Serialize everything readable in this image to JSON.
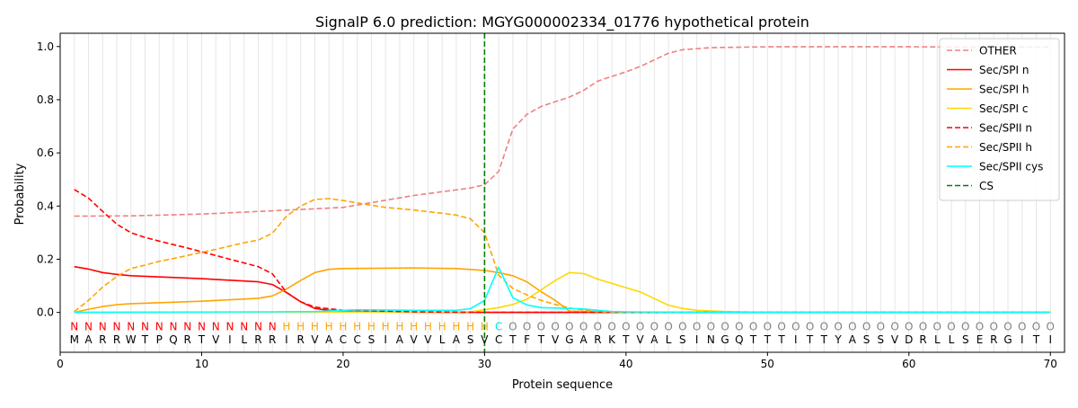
{
  "chart_data": {
    "type": "line",
    "title": "SignalP 6.0 prediction: MGYG000002334_01776 hypothetical protein",
    "xlabel": "Protein sequence",
    "ylabel": "Probability",
    "xlim": [
      0,
      71
    ],
    "ylim": [
      -0.15,
      1.05
    ],
    "x_ticks": [
      0,
      10,
      20,
      30,
      40,
      50,
      60,
      70
    ],
    "y_ticks": [
      0.0,
      0.2,
      0.4,
      0.6,
      0.8,
      1.0
    ],
    "grid": "vertical lines at each residue",
    "legend_position": "top-right",
    "cs_position": 30,
    "sequence": [
      "M",
      "A",
      "R",
      "R",
      "W",
      "T",
      "P",
      "Q",
      "R",
      "T",
      "V",
      "I",
      "L",
      "R",
      "R",
      "I",
      "R",
      "V",
      "A",
      "C",
      "C",
      "S",
      "I",
      "A",
      "V",
      "V",
      "L",
      "A",
      "S",
      "V",
      "C",
      "T",
      "F",
      "T",
      "V",
      "G",
      "A",
      "R",
      "K",
      "T",
      "V",
      "A",
      "L",
      "S",
      "I",
      "N",
      "G",
      "Q",
      "T",
      "T",
      "T",
      "I",
      "T",
      "T",
      "Y",
      "A",
      "S",
      "S",
      "V",
      "D",
      "R",
      "L",
      "L",
      "S",
      "E",
      "R",
      "G",
      "I",
      "T",
      "I"
    ],
    "region_labels": [
      "N",
      "N",
      "N",
      "N",
      "N",
      "N",
      "N",
      "N",
      "N",
      "N",
      "N",
      "N",
      "N",
      "N",
      "N",
      "H",
      "H",
      "H",
      "H",
      "H",
      "H",
      "H",
      "H",
      "H",
      "H",
      "H",
      "H",
      "H",
      "H",
      "H",
      "C",
      "O",
      "O",
      "O",
      "O",
      "O",
      "O",
      "O",
      "O",
      "O",
      "O",
      "O",
      "O",
      "O",
      "O",
      "O",
      "O",
      "O",
      "O",
      "O",
      "O",
      "O",
      "O",
      "O",
      "O",
      "O",
      "O",
      "O",
      "O",
      "O",
      "O",
      "O",
      "O",
      "O",
      "O",
      "O",
      "O",
      "O",
      "O",
      "O"
    ],
    "region_colors": {
      "N": "#ff0000",
      "H": "#ffa500",
      "C": "#00e5e5",
      "O": "#808080"
    },
    "series": [
      {
        "name": "OTHER",
        "color": "#f08080",
        "dash": "dashed",
        "points": [
          [
            1,
            0.362
          ],
          [
            5,
            0.363
          ],
          [
            10,
            0.37
          ],
          [
            15,
            0.382
          ],
          [
            20,
            0.395
          ],
          [
            25,
            0.44
          ],
          [
            29,
            0.468
          ],
          [
            30,
            0.48
          ],
          [
            31,
            0.53
          ],
          [
            32,
            0.69
          ],
          [
            33,
            0.745
          ],
          [
            34,
            0.775
          ],
          [
            36,
            0.81
          ],
          [
            37,
            0.835
          ],
          [
            38,
            0.87
          ],
          [
            40,
            0.905
          ],
          [
            41,
            0.925
          ],
          [
            42,
            0.95
          ],
          [
            43,
            0.975
          ],
          [
            44,
            0.988
          ],
          [
            46,
            0.996
          ],
          [
            50,
            0.999
          ],
          [
            60,
            0.999
          ],
          [
            70,
            0.998
          ]
        ]
      },
      {
        "name": "Sec/SPI n",
        "color": "#ff0000",
        "dash": "solid",
        "points": [
          [
            1,
            0.172
          ],
          [
            2,
            0.163
          ],
          [
            3,
            0.15
          ],
          [
            4,
            0.143
          ],
          [
            5,
            0.138
          ],
          [
            10,
            0.127
          ],
          [
            13,
            0.118
          ],
          [
            14,
            0.115
          ],
          [
            15,
            0.105
          ],
          [
            16,
            0.075
          ],
          [
            17,
            0.04
          ],
          [
            18,
            0.015
          ],
          [
            19,
            0.008
          ],
          [
            20,
            0.004
          ],
          [
            25,
            0.001
          ],
          [
            30,
            0.0
          ],
          [
            70,
            0.0
          ]
        ]
      },
      {
        "name": "Sec/SPI h",
        "color": "#ffa500",
        "dash": "solid",
        "points": [
          [
            1,
            0.0
          ],
          [
            2,
            0.012
          ],
          [
            3,
            0.022
          ],
          [
            4,
            0.029
          ],
          [
            5,
            0.033
          ],
          [
            10,
            0.042
          ],
          [
            14,
            0.053
          ],
          [
            15,
            0.062
          ],
          [
            16,
            0.088
          ],
          [
            17,
            0.12
          ],
          [
            18,
            0.15
          ],
          [
            19,
            0.162
          ],
          [
            20,
            0.165
          ],
          [
            25,
            0.167
          ],
          [
            28,
            0.165
          ],
          [
            30,
            0.158
          ],
          [
            31,
            0.15
          ],
          [
            32,
            0.138
          ],
          [
            33,
            0.115
          ],
          [
            34,
            0.078
          ],
          [
            35,
            0.045
          ],
          [
            36,
            0.005
          ],
          [
            40,
            0.0
          ],
          [
            70,
            0.0
          ]
        ]
      },
      {
        "name": "Sec/SPI c",
        "color": "#ffd700",
        "dash": "solid",
        "points": [
          [
            1,
            0.0
          ],
          [
            29,
            0.002
          ],
          [
            30,
            0.01
          ],
          [
            31,
            0.018
          ],
          [
            32,
            0.03
          ],
          [
            33,
            0.05
          ],
          [
            34,
            0.085
          ],
          [
            35,
            0.12
          ],
          [
            36,
            0.15
          ],
          [
            37,
            0.146
          ],
          [
            38,
            0.125
          ],
          [
            39,
            0.109
          ],
          [
            40,
            0.093
          ],
          [
            41,
            0.077
          ],
          [
            42,
            0.052
          ],
          [
            43,
            0.027
          ],
          [
            44,
            0.015
          ],
          [
            45,
            0.008
          ],
          [
            47,
            0.003
          ],
          [
            50,
            0.0
          ],
          [
            70,
            0.0
          ]
        ]
      },
      {
        "name": "Sec/SPII n",
        "color": "#ff0000",
        "dash": "dashed",
        "points": [
          [
            1,
            0.462
          ],
          [
            2,
            0.43
          ],
          [
            3,
            0.38
          ],
          [
            4,
            0.332
          ],
          [
            5,
            0.3
          ],
          [
            6,
            0.282
          ],
          [
            7,
            0.268
          ],
          [
            8,
            0.255
          ],
          [
            9,
            0.242
          ],
          [
            10,
            0.228
          ],
          [
            11,
            0.214
          ],
          [
            12,
            0.2
          ],
          [
            13,
            0.186
          ],
          [
            14,
            0.172
          ],
          [
            15,
            0.145
          ],
          [
            16,
            0.075
          ],
          [
            17,
            0.04
          ],
          [
            18,
            0.02
          ],
          [
            20,
            0.008
          ],
          [
            25,
            0.002
          ],
          [
            30,
            0.0
          ],
          [
            70,
            0.0
          ]
        ]
      },
      {
        "name": "Sec/SPII h",
        "color": "#ffa500",
        "dash": "dashed",
        "points": [
          [
            1,
            0.003
          ],
          [
            2,
            0.045
          ],
          [
            3,
            0.095
          ],
          [
            4,
            0.135
          ],
          [
            5,
            0.165
          ],
          [
            6,
            0.178
          ],
          [
            7,
            0.192
          ],
          [
            8,
            0.203
          ],
          [
            9,
            0.214
          ],
          [
            10,
            0.226
          ],
          [
            11,
            0.237
          ],
          [
            12,
            0.25
          ],
          [
            13,
            0.262
          ],
          [
            14,
            0.272
          ],
          [
            15,
            0.298
          ],
          [
            16,
            0.362
          ],
          [
            17,
            0.4
          ],
          [
            18,
            0.425
          ],
          [
            19,
            0.428
          ],
          [
            20,
            0.421
          ],
          [
            21,
            0.412
          ],
          [
            22,
            0.403
          ],
          [
            23,
            0.395
          ],
          [
            25,
            0.385
          ],
          [
            27,
            0.373
          ],
          [
            28,
            0.366
          ],
          [
            29,
            0.352
          ],
          [
            30,
            0.3
          ],
          [
            31,
            0.14
          ],
          [
            32,
            0.09
          ],
          [
            33,
            0.066
          ],
          [
            34,
            0.045
          ],
          [
            35,
            0.03
          ],
          [
            36,
            0.017
          ],
          [
            37,
            0.009
          ],
          [
            38,
            0.003
          ],
          [
            40,
            0.0
          ],
          [
            70,
            0.0
          ]
        ]
      },
      {
        "name": "Sec/SPII cys",
        "color": "#00ffff",
        "dash": "solid",
        "points": [
          [
            1,
            0.0
          ],
          [
            15,
            0.002
          ],
          [
            18,
            0.003
          ],
          [
            20,
            0.008
          ],
          [
            21,
            0.01
          ],
          [
            25,
            0.008
          ],
          [
            28,
            0.008
          ],
          [
            29,
            0.014
          ],
          [
            30,
            0.045
          ],
          [
            31,
            0.17
          ],
          [
            32,
            0.055
          ],
          [
            33,
            0.028
          ],
          [
            34,
            0.018
          ],
          [
            36,
            0.015
          ],
          [
            37,
            0.013
          ],
          [
            38,
            0.008
          ],
          [
            39,
            0.003
          ],
          [
            40,
            0.002
          ],
          [
            45,
            0.0
          ],
          [
            70,
            0.0
          ]
        ]
      }
    ],
    "markers": [
      {
        "name": "CS",
        "color": "#008000",
        "dash": "dashed",
        "x": 30
      }
    ]
  }
}
